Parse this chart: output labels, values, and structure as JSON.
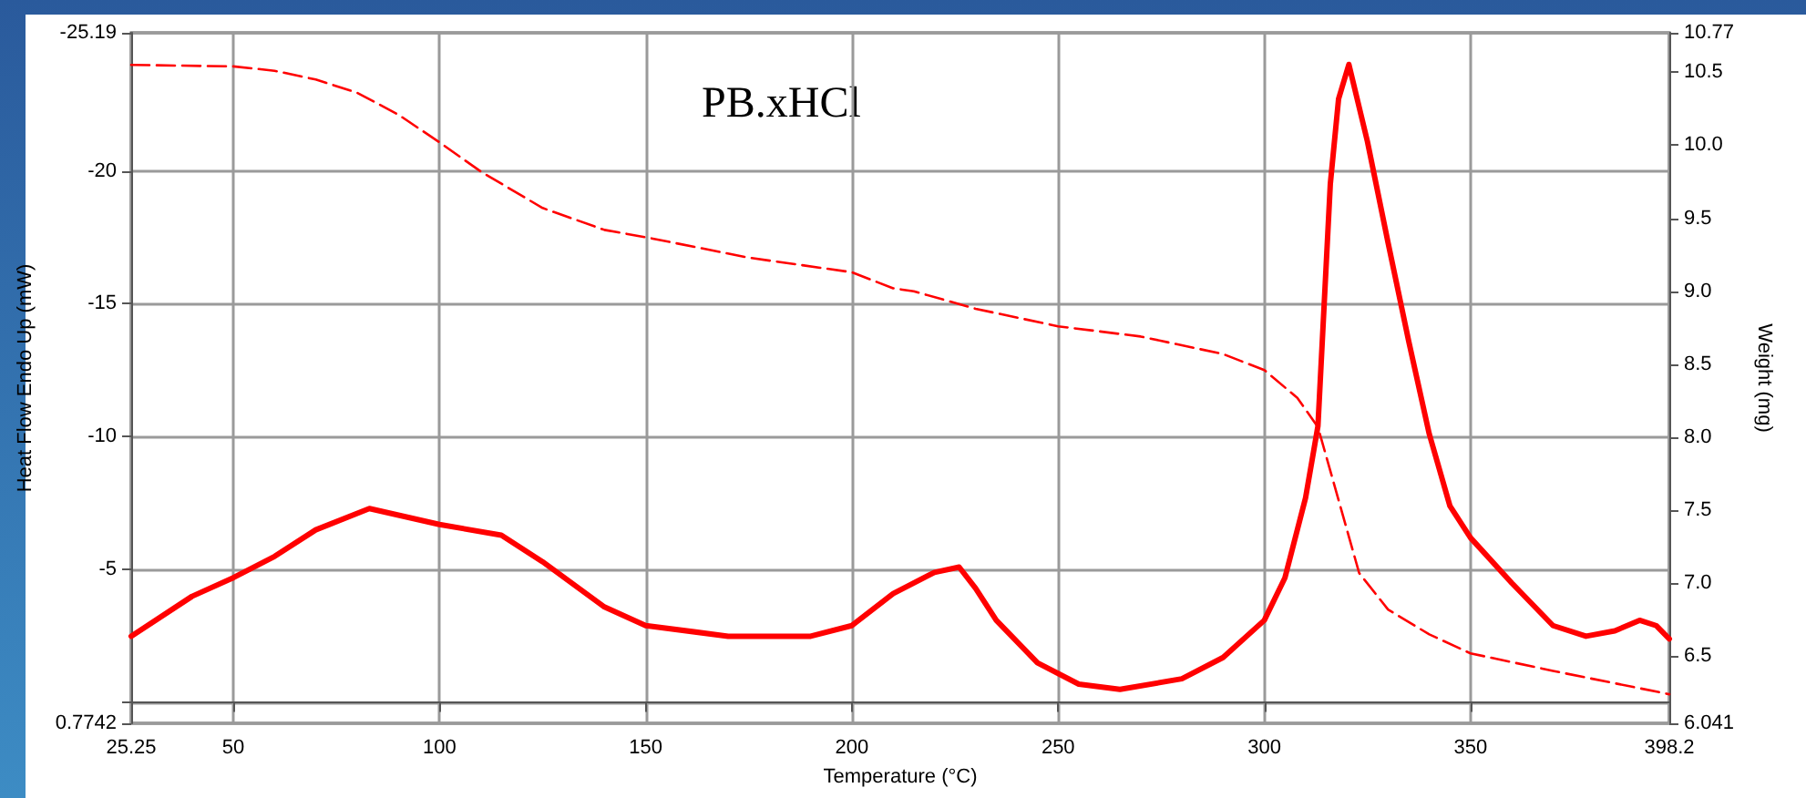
{
  "chart_data": {
    "type": "line",
    "xlabel": "Temperature (°C)",
    "ylabel": "Heat Flow Endo Up (mW)",
    "y2label": "Weight (mg)",
    "annotations": [
      "PB.xHCl"
    ],
    "xlim": [
      25.25,
      398.2
    ],
    "xticks": [
      25.25,
      50,
      100,
      150,
      200,
      250,
      300,
      350,
      398.2
    ],
    "ylim": [
      0.7742,
      -25.19
    ],
    "yticks": [
      0.7742,
      {
        "value": 0,
        "label": null
      },
      -5,
      -10,
      -15,
      -20,
      -25.19
    ],
    "y2lim": [
      6.041,
      10.77
    ],
    "y2ticks": [
      6.041,
      6.5,
      {
        "value": 7,
        "label": "7.0"
      },
      7.5,
      {
        "value": 8,
        "label": "8.0"
      },
      8.5,
      {
        "value": 9,
        "label": "9.0"
      },
      9.5,
      {
        "value": 10,
        "label": "10.0"
      },
      10.5,
      10.77
    ],
    "grid": true,
    "marker": "none",
    "series": [
      {
        "color": "#ff0000",
        "line_style": "solid",
        "x": [
          25.25,
          40,
          50,
          60,
          70,
          83,
          100,
          115,
          125,
          140,
          150,
          170,
          190,
          200,
          210,
          220,
          226,
          230,
          235,
          245,
          255,
          265,
          280,
          290,
          300,
          305,
          310,
          313,
          316,
          318,
          320.5,
          325,
          330,
          335,
          340,
          345,
          350,
          360,
          370,
          378,
          385,
          391,
          395,
          398.2
        ],
        "values": [
          -2.5,
          -4.0,
          -4.7,
          -5.5,
          -6.5,
          -7.3,
          -6.7,
          -6.3,
          -5.3,
          -3.6,
          -2.9,
          -2.5,
          -2.5,
          -2.9,
          -4.1,
          -4.9,
          -5.1,
          -4.3,
          -3.1,
          -1.5,
          -0.7,
          -0.5,
          -0.9,
          -1.7,
          -3.1,
          -4.7,
          -7.7,
          -10.4,
          -19.5,
          -22.7,
          -24.0,
          -21.1,
          -17.3,
          -13.6,
          -10.1,
          -7.4,
          -6.2,
          -4.5,
          -2.9,
          -2.5,
          -2.7,
          -3.1,
          -2.9,
          -2.4
        ]
      },
      {
        "color": "#ff0000",
        "line_style": "dashed",
        "axis": "y2",
        "x": [
          25.25,
          50,
          60,
          70,
          80,
          90,
          100,
          110,
          125,
          140,
          150,
          175,
          200,
          210,
          215,
          230,
          250,
          270,
          290,
          300,
          308,
          313,
          318,
          323,
          330,
          340,
          350,
          370,
          398.2
        ],
        "values": [
          10.55,
          10.54,
          10.51,
          10.45,
          10.36,
          10.21,
          10.02,
          9.82,
          9.57,
          9.42,
          9.37,
          9.23,
          9.13,
          9.02,
          9.0,
          8.88,
          8.76,
          8.69,
          8.57,
          8.46,
          8.27,
          8.07,
          7.57,
          7.07,
          6.82,
          6.65,
          6.52,
          6.4,
          6.24
        ]
      }
    ]
  }
}
